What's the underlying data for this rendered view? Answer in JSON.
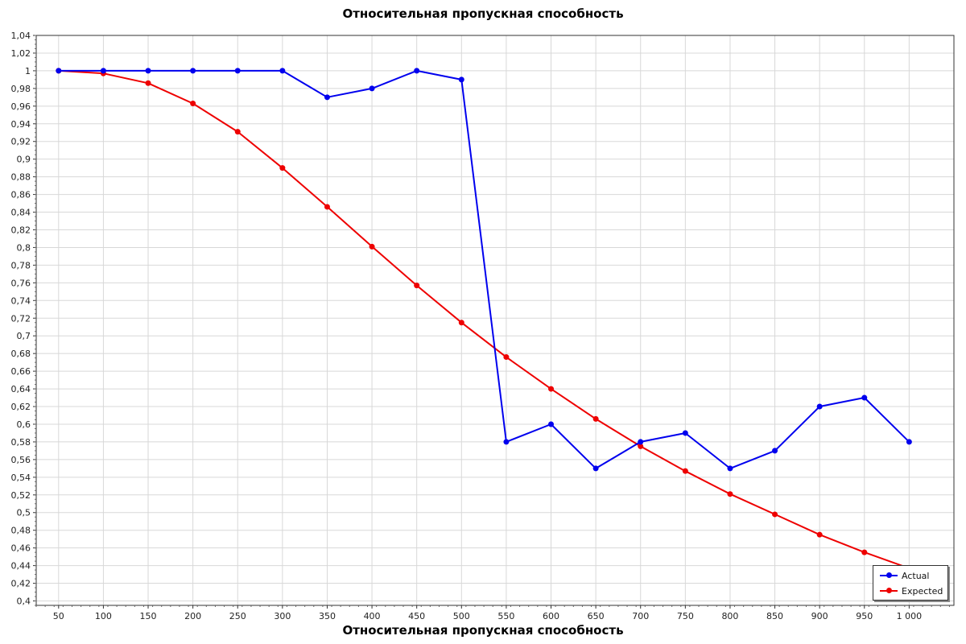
{
  "chart_data": {
    "type": "line",
    "title": "Относительная пропускная способность",
    "xlabel": "Относительная пропускная способность",
    "ylabel": "",
    "x": [
      50,
      100,
      150,
      200,
      250,
      300,
      350,
      400,
      450,
      500,
      550,
      600,
      650,
      700,
      750,
      800,
      850,
      900,
      950,
      1000
    ],
    "x_tick_labels": [
      "50",
      "100",
      "150",
      "200",
      "250",
      "300",
      "350",
      "400",
      "450",
      "500",
      "550",
      "600",
      "650",
      "700",
      "750",
      "800",
      "850",
      "900",
      "950",
      "1 000"
    ],
    "xlim": [
      25,
      1050
    ],
    "ylim": [
      0.395,
      1.04
    ],
    "y_ticks": [
      0.4,
      0.42,
      0.44,
      0.46,
      0.48,
      0.5,
      0.52,
      0.54,
      0.56,
      0.58,
      0.6,
      0.62,
      0.64,
      0.66,
      0.68,
      0.7,
      0.72,
      0.74,
      0.76,
      0.78,
      0.8,
      0.82,
      0.84,
      0.86,
      0.88,
      0.9,
      0.92,
      0.94,
      0.96,
      0.98,
      1.0,
      1.02,
      1.04
    ],
    "y_tick_labels": [
      "0,4",
      "0,42",
      "0,44",
      "0,46",
      "0,48",
      "0,5",
      "0,52",
      "0,54",
      "0,56",
      "0,58",
      "0,6",
      "0,62",
      "0,64",
      "0,66",
      "0,68",
      "0,7",
      "0,72",
      "0,74",
      "0,76",
      "0,78",
      "0,8",
      "0,82",
      "0,84",
      "0,86",
      "0,88",
      "0,9",
      "0,92",
      "0,94",
      "0,96",
      "0,98",
      "1",
      "1,02",
      "1,04"
    ],
    "grid": true,
    "legend_position": "bottom-right",
    "series": [
      {
        "name": "Actual",
        "color": "#0000ee",
        "values": [
          1.0,
          1.0,
          1.0,
          1.0,
          1.0,
          1.0,
          0.97,
          0.98,
          1.0,
          0.99,
          0.58,
          0.6,
          0.55,
          0.58,
          0.59,
          0.55,
          0.57,
          0.62,
          0.63,
          0.58
        ]
      },
      {
        "name": "Expected",
        "color": "#ee0000",
        "values": [
          1.0,
          0.997,
          0.986,
          0.963,
          0.931,
          0.89,
          0.846,
          0.801,
          0.757,
          0.715,
          0.676,
          0.64,
          0.606,
          0.575,
          0.547,
          0.521,
          0.498,
          0.475,
          0.455,
          0.437
        ]
      }
    ]
  }
}
